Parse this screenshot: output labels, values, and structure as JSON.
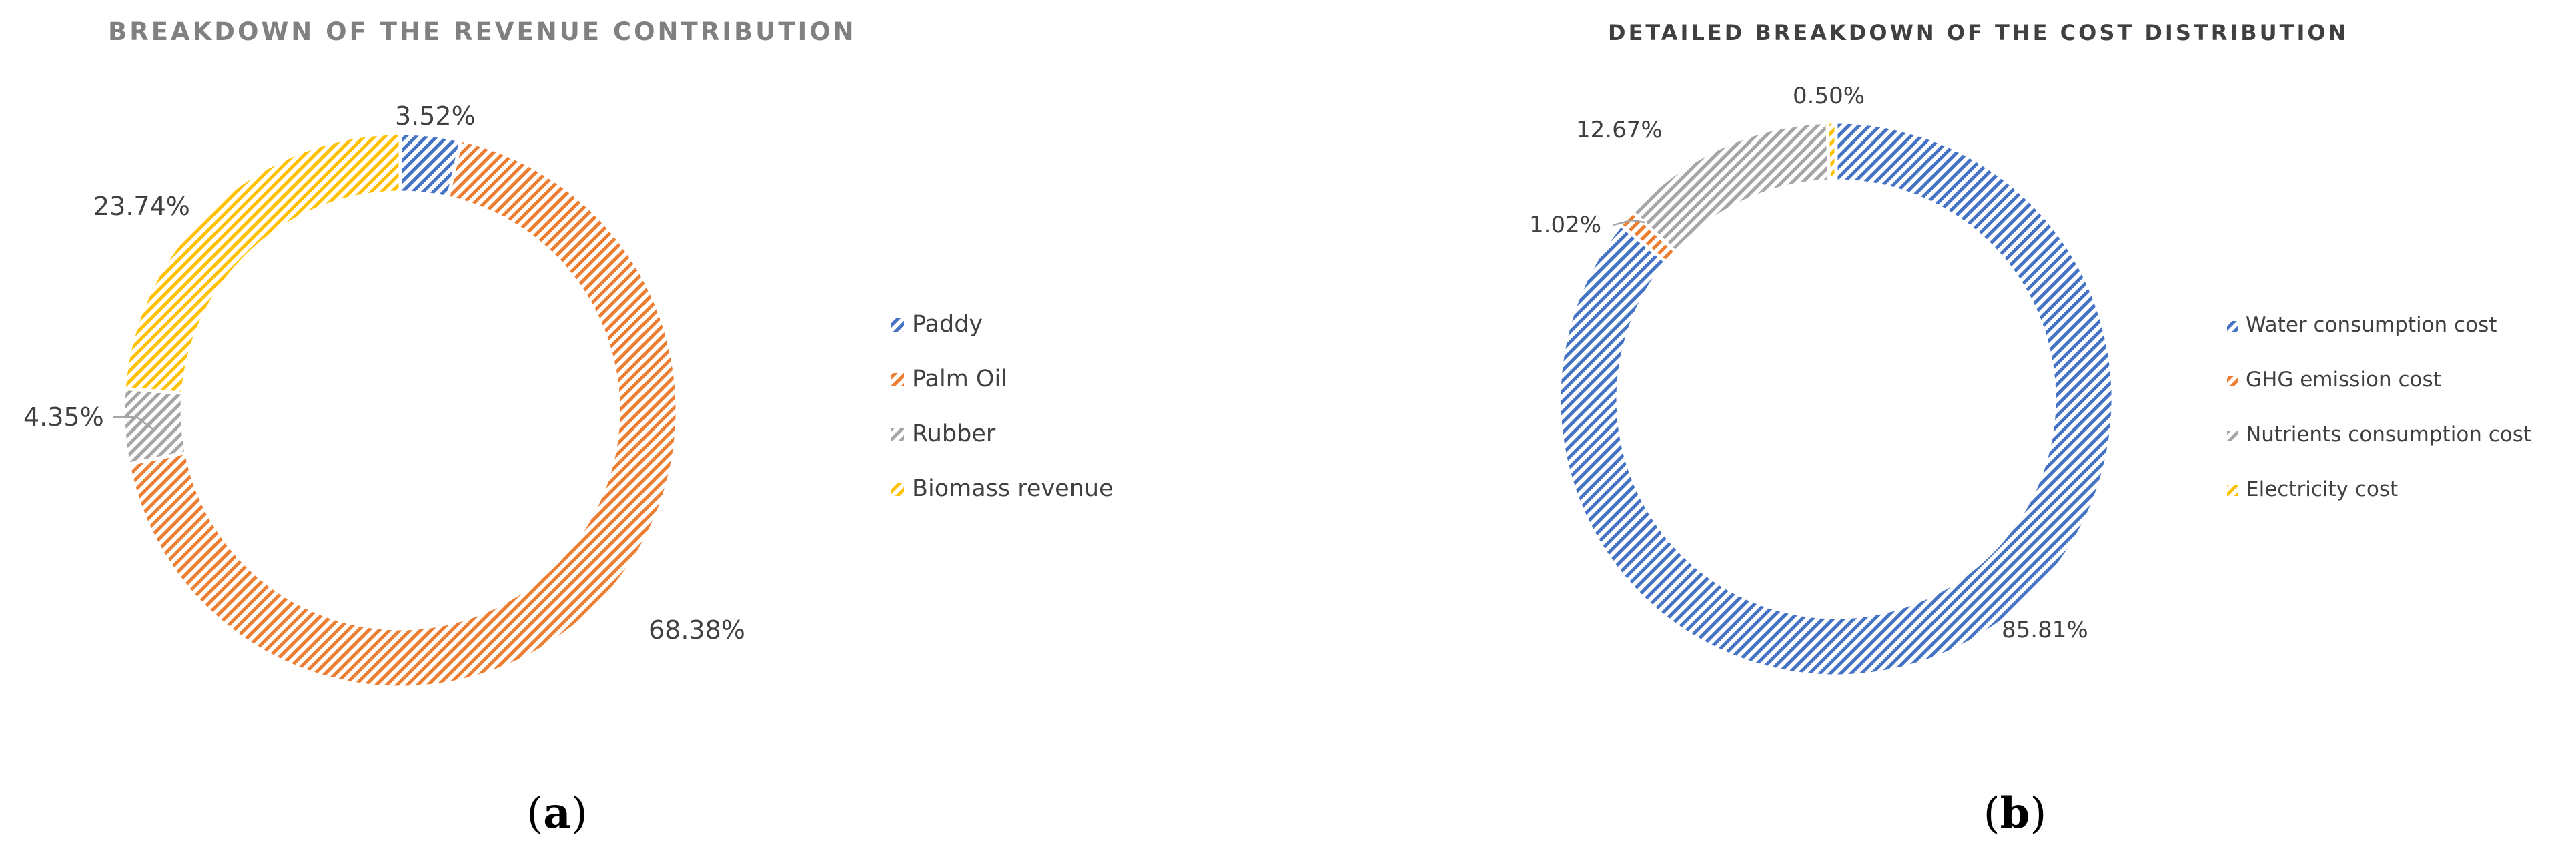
{
  "chart_data": [
    {
      "type": "pie",
      "donut": true,
      "title": "BREAKDOWN OF THE REVENUE CONTRIBUTION",
      "categories": [
        "Paddy",
        "Palm Oil",
        "Rubber",
        "Biomass revenue"
      ],
      "values": [
        3.52,
        68.38,
        4.35,
        23.74
      ],
      "value_labels": [
        "3.52%",
        "68.38%",
        "4.35%",
        "23.74%"
      ],
      "colors": [
        "#4472C4",
        "#ED7D31",
        "#A5A5A5",
        "#FFC000"
      ],
      "pattern": "diagonal-hatch",
      "legend_position": "right",
      "caption": {
        "open": "(",
        "letter": "a",
        "close": ")"
      }
    },
    {
      "type": "pie",
      "donut": true,
      "title": "DETAILED BREAKDOWN OF THE COST DISTRIBUTION",
      "categories": [
        "Water consumption cost",
        "GHG emission cost",
        "Nutrients consumption cost",
        "Electricity cost"
      ],
      "values": [
        85.81,
        1.02,
        12.67,
        0.5
      ],
      "value_labels": [
        "85.81%",
        "1.02%",
        "12.67%",
        "0.50%"
      ],
      "colors": [
        "#4472C4",
        "#ED7D31",
        "#A5A5A5",
        "#FFC000"
      ],
      "pattern": "diagonal-hatch",
      "legend_position": "right",
      "caption": {
        "open": "(",
        "letter": "b",
        "close": ")"
      }
    }
  ]
}
